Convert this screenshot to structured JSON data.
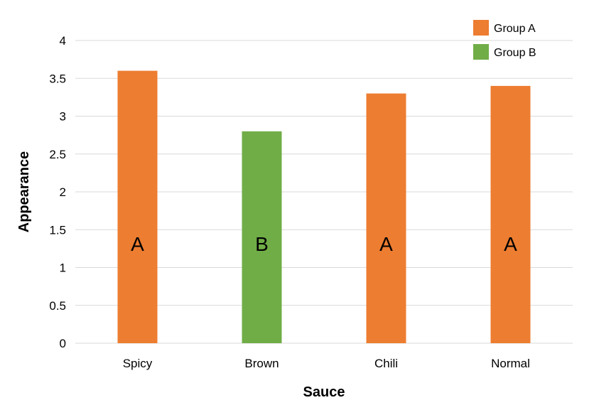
{
  "chart_data": {
    "type": "bar",
    "xlabel": "Sauce",
    "ylabel": "Appearance",
    "ylim": [
      0,
      4
    ],
    "yticks": [
      "0",
      "0.5",
      "1",
      "1.5",
      "2",
      "2.5",
      "3",
      "3.5",
      "4"
    ],
    "grid": true,
    "legend_position": "top-right",
    "categories": [
      "Spicy",
      "Brown",
      "Chili",
      "Normal"
    ],
    "values": [
      3.6,
      2.8,
      3.3,
      3.4
    ],
    "groups": [
      "A",
      "B",
      "A",
      "A"
    ],
    "bar_labels": [
      "A",
      "B",
      "A",
      "A"
    ],
    "legend": [
      {
        "name": "Group A",
        "color": "#ed7d31"
      },
      {
        "name": "Group B",
        "color": "#70ad47"
      }
    ],
    "colors": {
      "A": "#ed7d31",
      "B": "#70ad47"
    }
  }
}
